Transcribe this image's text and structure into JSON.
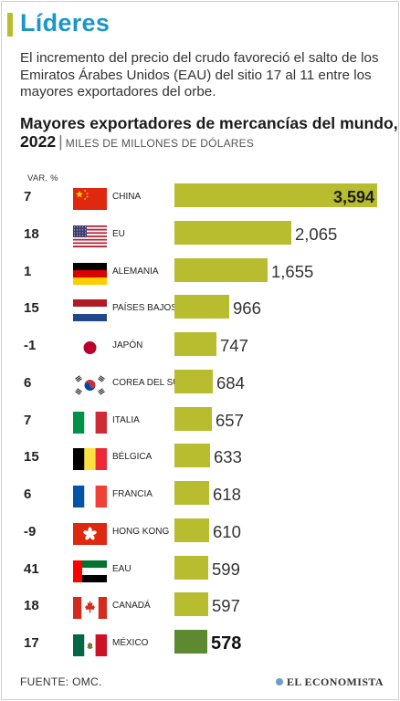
{
  "header": {
    "title": "Líderes",
    "dek": "El incremento del precio del crudo favoreció el salto de los Emiratos Árabes Unidos (EAU) del sitio 17 al 11 entre los mayores exportadores del orbe."
  },
  "colors": {
    "accent": "#b7bd2f",
    "highlight": "#5d8a30",
    "title_blue": "#1a97c8"
  },
  "chart_data": {
    "type": "bar",
    "orientation": "horizontal",
    "title": "Mayores exportadores de mercancías del mundo, 2022",
    "unit": "MILES DE MILLONES DE DÓLARES",
    "var_header": "VAR. %",
    "categories": [
      "CHINA",
      "EU",
      "ALEMANIA",
      "PAÍSES BAJOS",
      "JAPÓN",
      "COREA DEL SUR",
      "ITALIA",
      "BÉLGICA",
      "FRANCIA",
      "HONG KONG",
      "EAU",
      "CANADÁ",
      "MÉXICO"
    ],
    "values": [
      3594,
      2065,
      1655,
      966,
      747,
      684,
      657,
      633,
      618,
      610,
      599,
      597,
      578
    ],
    "value_labels": [
      "3,594",
      "2,065",
      "1,655",
      "966",
      "747",
      "684",
      "657",
      "633",
      "618",
      "610",
      "599",
      "597",
      "578"
    ],
    "var_pct": [
      "7",
      "18",
      "1",
      "15",
      "-1",
      "6",
      "7",
      "15",
      "6",
      "-9",
      "41",
      "18",
      "17"
    ],
    "flags": [
      "china-flag",
      "us-flag",
      "germany-flag",
      "netherlands-flag",
      "japan-flag",
      "south-korea-flag",
      "italy-flag",
      "belgium-flag",
      "france-flag",
      "hong-kong-flag",
      "uae-flag",
      "canada-flag",
      "mexico-flag"
    ],
    "highlight": "MÉXICO"
  },
  "footer": {
    "source": "FUENTE:  OMC.",
    "brand": "EL ECONOMISTA",
    "brand_icon": "el-economista-logo-icon"
  }
}
